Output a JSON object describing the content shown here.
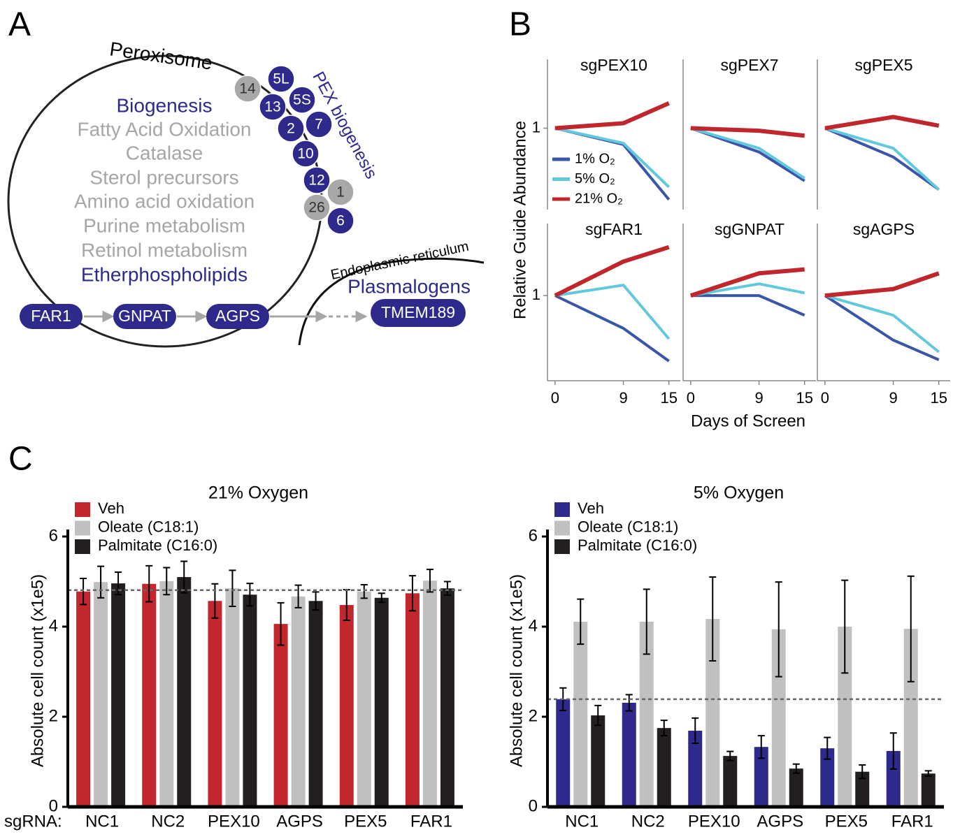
{
  "panel_labels": [
    "A",
    "B",
    "C"
  ],
  "diagram": {
    "organelle": "Peroxisome",
    "pathways": [
      "Biogenesis",
      "Fatty Acid Oxidation",
      "Catalase",
      "Sterol precursors",
      "Amino acid oxidation",
      "Purine metabolism",
      "Retinol metabolism",
      "Etherphospholipids"
    ],
    "pex_label": "PEX biogenesis",
    "pex_proteins": [
      "14",
      "5L",
      "13",
      "5S",
      "2",
      "7",
      "10",
      "12",
      "1",
      "26",
      "6"
    ],
    "er_label": "Endoplasmic reticulum",
    "product": "Plasmalogens",
    "enzymes": [
      "FAR1",
      "GNPAT",
      "AGPS",
      "TMEM189"
    ]
  },
  "chart_data": [
    {
      "type": "line",
      "ylabel": "Relative Guide Abundance",
      "xlabel": "Days of Screen",
      "x": [
        0,
        9,
        15
      ],
      "xlim": [
        -1,
        16.5
      ],
      "xticks": [
        0,
        9,
        15
      ],
      "ylim": [
        0.35,
        1.55
      ],
      "yticks": [
        1
      ],
      "series": [
        {
          "name": "1% O₂",
          "color": "#3a56a8"
        },
        {
          "name": "5% O₂",
          "color": "#62c8dc"
        },
        {
          "name": "21% O₂",
          "color": "#c0272d"
        }
      ],
      "panels": [
        {
          "title": "sgPEX10",
          "values": [
            [
              1,
              0.87,
              0.43
            ],
            [
              1,
              0.88,
              0.53
            ],
            [
              1,
              1.04,
              1.2
            ]
          ]
        },
        {
          "title": "sgPEX7",
          "values": [
            [
              1,
              0.81,
              0.58
            ],
            [
              1,
              0.84,
              0.6
            ],
            [
              1,
              0.98,
              0.94
            ]
          ]
        },
        {
          "title": "sgPEX5",
          "values": [
            [
              1,
              0.77,
              0.51
            ],
            [
              1,
              0.84,
              0.51
            ],
            [
              1,
              1.09,
              1.02
            ]
          ]
        },
        {
          "title": "sgFAR1",
          "values": [
            [
              1,
              0.75,
              0.5
            ],
            [
              1,
              1.08,
              0.67
            ],
            [
              1,
              1.26,
              1.37
            ]
          ]
        },
        {
          "title": "sgGNPAT",
          "values": [
            [
              1,
              1,
              0.85
            ],
            [
              1,
              1.09,
              1.02
            ],
            [
              1,
              1.17,
              1.2
            ]
          ]
        },
        {
          "title": "sgAGPS",
          "values": [
            [
              1,
              0.66,
              0.51
            ],
            [
              1,
              0.85,
              0.57
            ],
            [
              1,
              1.05,
              1.17
            ]
          ]
        }
      ]
    },
    {
      "type": "bar",
      "title": "21% Oxygen",
      "ylabel": "Absolute cell count (x1e5)",
      "xlabel": "sgRNA:",
      "categories": [
        "NC1",
        "NC2",
        "PEX10",
        "AGPS",
        "PEX5",
        "FAR1"
      ],
      "ylim": [
        0,
        6
      ],
      "yticks": [
        0,
        2,
        4,
        6
      ],
      "ref_line": 4.81,
      "series": [
        {
          "name": "Veh",
          "color": "#c1272d",
          "values": [
            4.78,
            4.95,
            4.57,
            4.06,
            4.48,
            4.74
          ],
          "errors": [
            0.29,
            0.4,
            0.38,
            0.47,
            0.34,
            0.39
          ]
        },
        {
          "name": "Oleate (C18:1)",
          "color": "#c0c0c0",
          "values": [
            4.99,
            5.01,
            4.85,
            4.67,
            4.78,
            5.02
          ],
          "errors": [
            0.35,
            0.3,
            0.4,
            0.25,
            0.15,
            0.25
          ]
        },
        {
          "name": "Palmitate (C16:0)",
          "color": "#231f20",
          "values": [
            4.96,
            5.1,
            4.71,
            4.57,
            4.64,
            4.85
          ],
          "errors": [
            0.25,
            0.35,
            0.25,
            0.2,
            0.1,
            0.15
          ]
        }
      ]
    },
    {
      "type": "bar",
      "title": "5% Oxygen",
      "ylabel": "Absolute cell count (x1e5)",
      "categories": [
        "NC1",
        "NC2",
        "PEX10",
        "AGPS",
        "PEX5",
        "FAR1"
      ],
      "ylim": [
        0,
        6
      ],
      "yticks": [
        0,
        2,
        4,
        6
      ],
      "ref_line": 2.39,
      "series": [
        {
          "name": "Veh",
          "color": "#2e2a8c",
          "values": [
            2.39,
            2.31,
            1.69,
            1.33,
            1.3,
            1.24
          ],
          "errors": [
            0.25,
            0.18,
            0.28,
            0.25,
            0.24,
            0.4
          ]
        },
        {
          "name": "Oleate (C18:1)",
          "color": "#c0c0c0",
          "values": [
            4.11,
            4.11,
            4.17,
            3.94,
            4.0,
            3.95
          ],
          "errors": [
            0.5,
            0.72,
            0.93,
            1.05,
            1.03,
            1.17
          ]
        },
        {
          "name": "Palmitate (C16:0)",
          "color": "#231f20",
          "values": [
            2.03,
            1.75,
            1.13,
            0.85,
            0.78,
            0.74
          ],
          "errors": [
            0.22,
            0.17,
            0.1,
            0.1,
            0.15,
            0.06
          ]
        }
      ]
    }
  ]
}
